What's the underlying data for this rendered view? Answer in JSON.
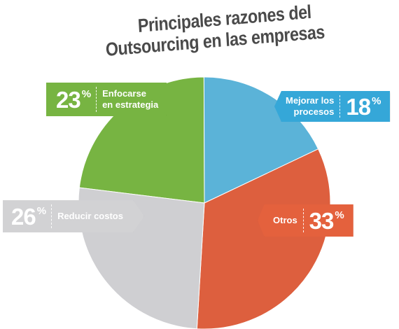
{
  "chart_data": {
    "type": "pie",
    "title_lines": [
      "Principales razones del",
      "Outsourcing en las empresas"
    ],
    "slices": [
      {
        "label": "Enfocarse en estrategia",
        "label_lines": [
          "Enfocarse",
          "en estrategia"
        ],
        "value": 23,
        "color": "#77b442"
      },
      {
        "label": "Mejorar los procesos",
        "label_lines": [
          "Mejorar los",
          "procesos"
        ],
        "value": 18,
        "color": "#5bb3d8"
      },
      {
        "label": "Otros",
        "label_lines": [
          "Otros"
        ],
        "value": 33,
        "color": "#dd5f3e"
      },
      {
        "label": "Reducir costos",
        "label_lines": [
          "Reducir costos"
        ],
        "value": 26,
        "color": "#cfcfd2"
      }
    ],
    "value_suffix": "%"
  }
}
